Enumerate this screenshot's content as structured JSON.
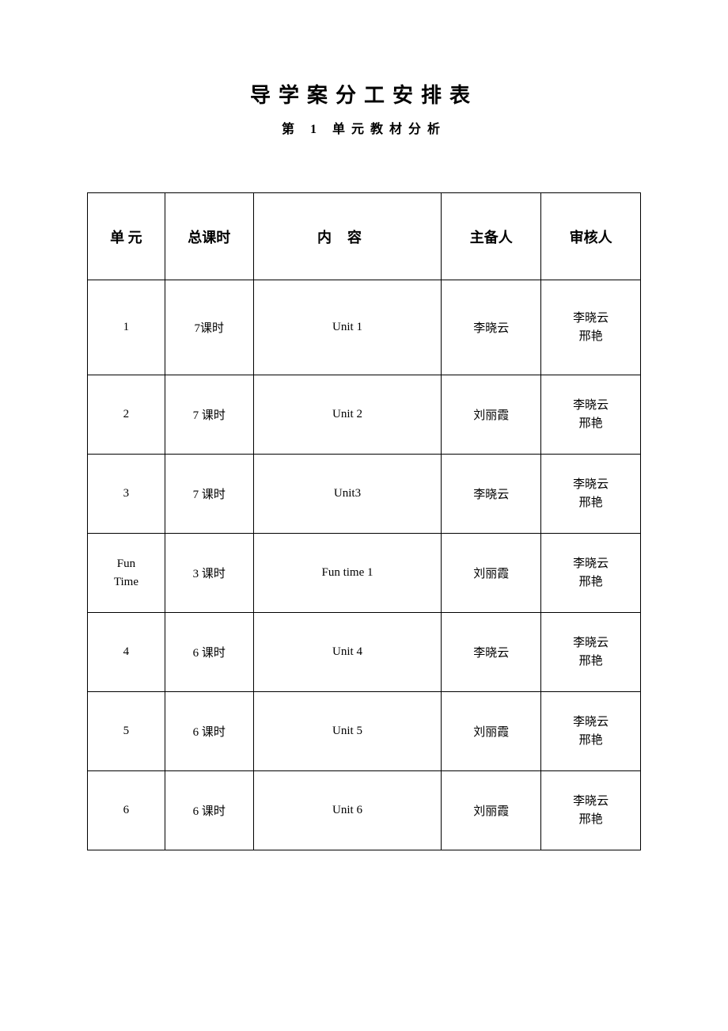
{
  "title": "导学案分工安排表",
  "subtitle_prefix": "第",
  "subtitle_number": "1",
  "subtitle_suffix": "单元教材分析",
  "table": {
    "columns": {
      "unit": "单 元",
      "hours": "总课时",
      "content_char1": "内",
      "content_char2": "容",
      "main": "主备人",
      "review": "审核人"
    },
    "rows": [
      {
        "unit": "1",
        "hours": "7课时",
        "content": "Unit 1",
        "main": "李晓云",
        "review_line1": "李晓云",
        "review_line2": "邢艳"
      },
      {
        "unit": "2",
        "hours": "7 课时",
        "content": "Unit 2",
        "main": "刘丽霞",
        "review_line1": "李晓云",
        "review_line2": "邢艳"
      },
      {
        "unit": "3",
        "hours": "7 课时",
        "content": "Unit3",
        "main": "李晓云",
        "review_line1": "李晓云",
        "review_line2": "邢艳"
      },
      {
        "unit_line1": "Fun",
        "unit_line2": "Time",
        "hours": "3 课时",
        "content": "Fun time 1",
        "main": "刘丽霞",
        "review_line1": "李晓云",
        "review_line2": "邢艳"
      },
      {
        "unit": "4",
        "hours": "6 课时",
        "content": "Unit 4",
        "main": "李晓云",
        "review_line1": "李晓云",
        "review_line2": "邢艳"
      },
      {
        "unit": "5",
        "hours": "6 课时",
        "content": "Unit 5",
        "main": "刘丽霞",
        "review_line1": "李晓云",
        "review_line2": "邢艳"
      },
      {
        "unit": "6",
        "hours": "6 课时",
        "content": "Unit 6",
        "main": "刘丽霞",
        "review_line1": "李晓云",
        "review_line2": "邢艳"
      }
    ],
    "column_widths_pct": {
      "unit": 14,
      "hours": 16,
      "content": 34,
      "main": 18,
      "review": 18
    },
    "border_color": "#000000",
    "background_color": "#ffffff",
    "header_fontsize": 18,
    "body_fontsize": 15,
    "header_row_height": 110,
    "body_row_height": 120,
    "small_row_height": 100
  }
}
